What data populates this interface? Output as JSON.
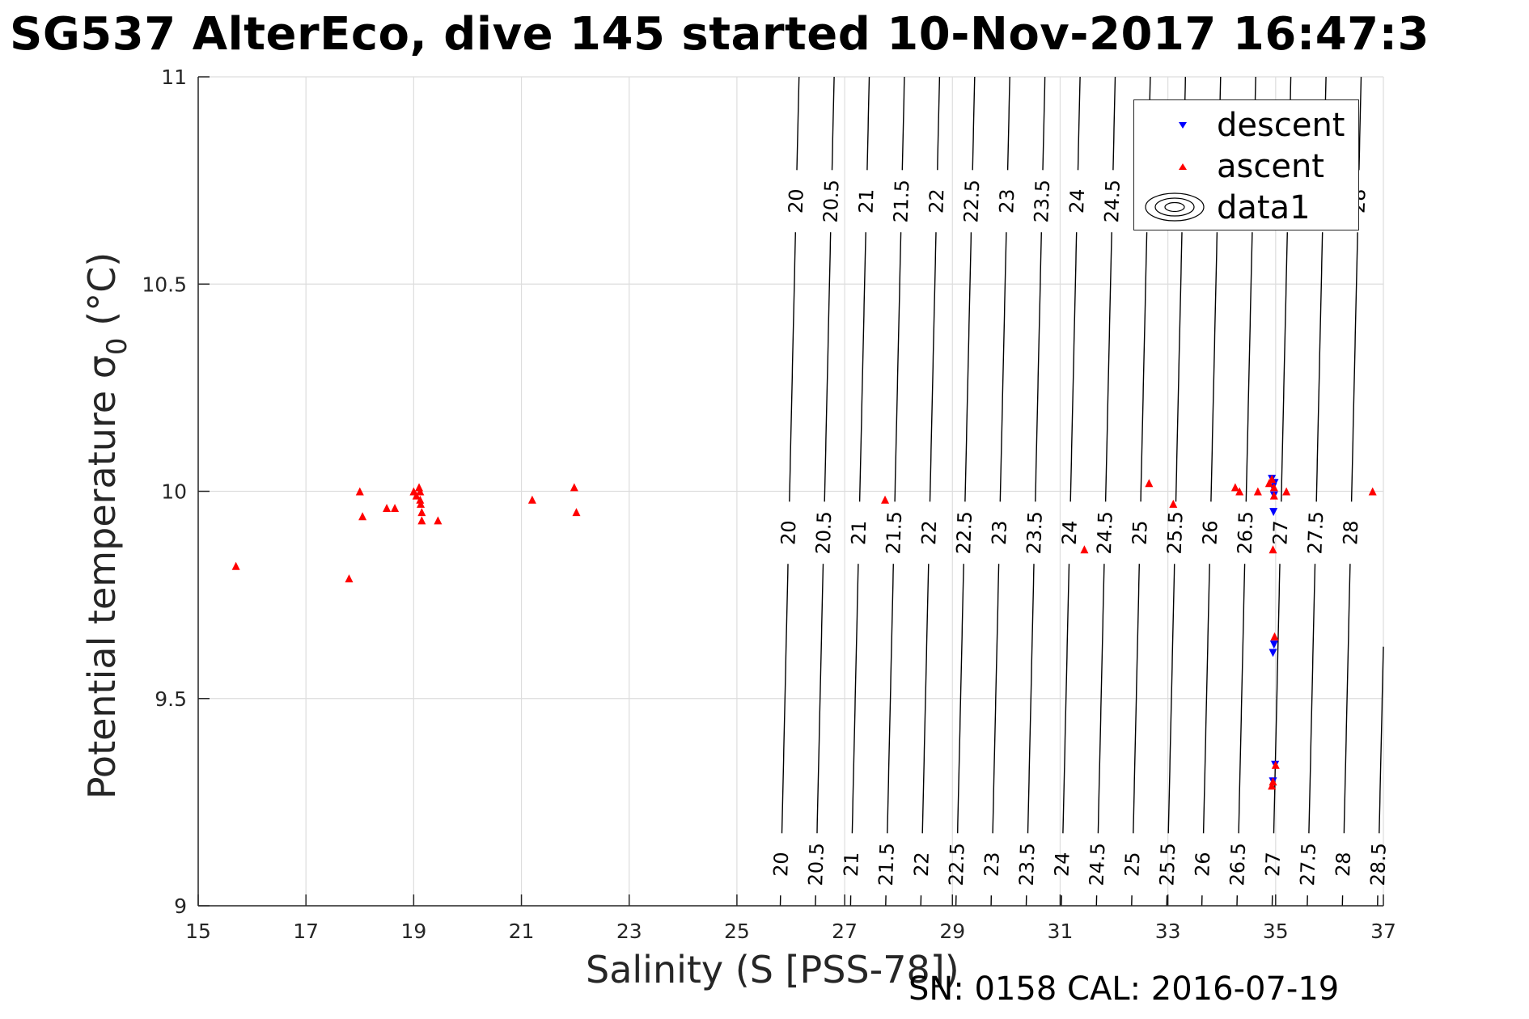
{
  "title": "SG537 AlterEco, dive 145 started 10-Nov-2017 16:47:3",
  "footer": "SN: 0158  CAL: 2016-07-19",
  "colors": {
    "descent": "#0000ff",
    "ascent": "#ff0000",
    "contour": "#000000",
    "grid": "#dddddd",
    "axis": "#262626"
  },
  "legend": {
    "placement": "top-right",
    "entries": [
      {
        "label": "descent",
        "marker": "triangle-down",
        "color": "#0000ff"
      },
      {
        "label": "ascent",
        "marker": "triangle-up",
        "color": "#ff0000"
      },
      {
        "label": "data1",
        "marker": "contour-ellipses",
        "color": "#000000"
      }
    ]
  },
  "chart_data": {
    "type": "scatter",
    "title": "SG537 AlterEco, dive 145 started 10-Nov-2017 16:47:3",
    "xlabel": "Salinity (S [PSS-78])",
    "ylabel": "Potential temperature",
    "ylabel_symbol": "σ",
    "ylabel_subscript": "0",
    "ylabel_unit": "(°C)",
    "xlim": [
      15,
      37
    ],
    "ylim": [
      9,
      11
    ],
    "xticks": [
      15,
      17,
      19,
      21,
      23,
      25,
      27,
      29,
      31,
      33,
      35,
      37
    ],
    "yticks": [
      9,
      9.5,
      10,
      10.5,
      11
    ],
    "grid": true,
    "series": [
      {
        "name": "descent",
        "marker": "triangle-down",
        "points": [
          [
            34.93,
            10.03
          ],
          [
            34.98,
            10.02
          ],
          [
            34.95,
            10.01
          ],
          [
            34.97,
            9.99
          ],
          [
            34.96,
            9.95
          ],
          [
            34.97,
            9.63
          ],
          [
            34.95,
            9.61
          ],
          [
            34.99,
            9.34
          ],
          [
            34.95,
            9.3
          ]
        ]
      },
      {
        "name": "ascent",
        "marker": "triangle-up",
        "points": [
          [
            15.7,
            9.82
          ],
          [
            17.8,
            9.79
          ],
          [
            18.0,
            10.0
          ],
          [
            18.05,
            9.94
          ],
          [
            18.5,
            9.96
          ],
          [
            18.65,
            9.96
          ],
          [
            19.0,
            10.0
          ],
          [
            19.05,
            9.99
          ],
          [
            19.1,
            10.01
          ],
          [
            19.12,
            10.0
          ],
          [
            19.12,
            9.98
          ],
          [
            19.13,
            9.97
          ],
          [
            19.15,
            9.95
          ],
          [
            19.15,
            9.93
          ],
          [
            19.45,
            9.93
          ],
          [
            21.2,
            9.98
          ],
          [
            21.98,
            10.01
          ],
          [
            22.02,
            9.95
          ],
          [
            27.75,
            9.98
          ],
          [
            31.45,
            9.86
          ],
          [
            32.65,
            10.02
          ],
          [
            33.1,
            9.97
          ],
          [
            34.25,
            10.01
          ],
          [
            34.33,
            10.0
          ],
          [
            34.67,
            10.0
          ],
          [
            34.88,
            10.02
          ],
          [
            34.93,
            10.03
          ],
          [
            34.97,
            10.01
          ],
          [
            34.95,
            9.86
          ],
          [
            34.98,
            9.65
          ],
          [
            34.97,
            9.99
          ],
          [
            35.2,
            10.0
          ],
          [
            34.95,
            9.3
          ],
          [
            34.93,
            9.29
          ],
          [
            35.0,
            9.34
          ],
          [
            36.8,
            10.0
          ]
        ]
      }
    ],
    "density_contours": {
      "name": "data1",
      "levels": [
        20,
        20.5,
        21,
        21.5,
        22,
        22.5,
        23,
        23.5,
        24,
        24.5,
        25,
        25.5,
        26,
        26.5,
        27,
        27.5,
        28,
        28.5
      ],
      "label_rows_temperature": [
        10.7,
        9.9,
        9.1
      ]
    }
  }
}
